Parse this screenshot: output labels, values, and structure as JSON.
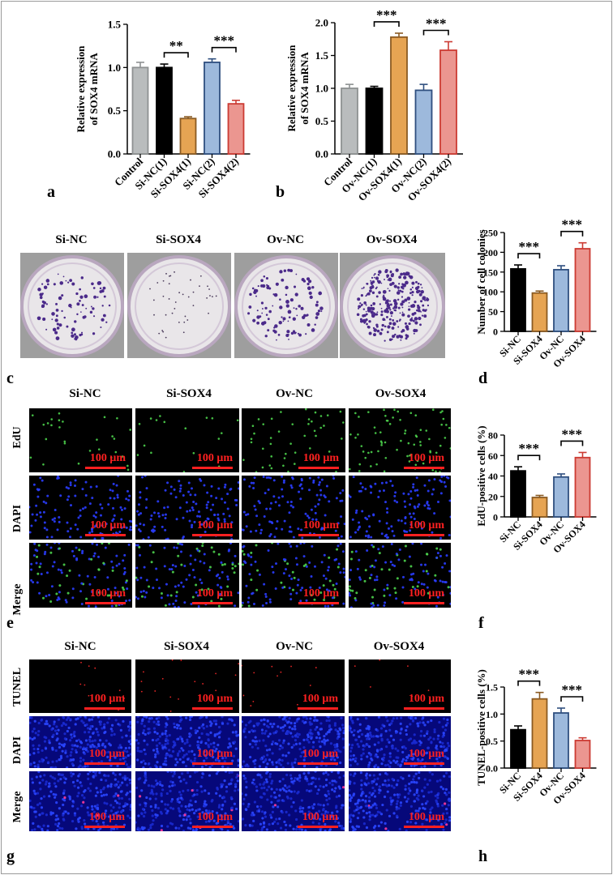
{
  "panel_letters": [
    "a",
    "b",
    "c",
    "d",
    "e",
    "f",
    "g",
    "h"
  ],
  "scale_text": "100 μm",
  "colony_group_labels": [
    "Si-NC",
    "Si-SOX4",
    "Ov-NC",
    "Ov-SOX4"
  ],
  "edu_group_labels": [
    "Si-NC",
    "Si-SOX4",
    "Ov-NC",
    "Ov-SOX4"
  ],
  "tunel_group_labels": [
    "Si-NC",
    "Si-SOX4",
    "Ov-NC",
    "Ov-SOX4"
  ],
  "edu_row_labels": [
    "EdU",
    "DAPI",
    "Merge"
  ],
  "tunel_row_labels": [
    "TUNEL",
    "DAPI",
    "Merge"
  ],
  "colors": {
    "gray": "#b9bcbd",
    "black": "#000000",
    "orange": "#e6a453",
    "blue": "#9db9dc",
    "pink": "#eb9690",
    "outline_orange": "#8a5a22",
    "outline_blue": "#2f4f7f",
    "outline_pink": "#cc3b33",
    "edu_green": "#4cd34c",
    "dapi_blue": "#2a3dff",
    "tunel_red": "#ff2a2a"
  },
  "chart_data": [
    {
      "id": "a",
      "type": "bar",
      "categories": [
        "Control",
        "Si-NC(1)",
        "Si-SOX4(1)",
        "Si-NC(2)",
        "Si-SOX4(2)"
      ],
      "values": [
        1.0,
        1.0,
        0.41,
        1.06,
        0.58
      ],
      "errors": [
        0.06,
        0.04,
        0.02,
        0.04,
        0.04
      ],
      "colors": [
        "gray",
        "black",
        "orange",
        "blue",
        "pink"
      ],
      "ylabel": [
        "Relative expression",
        "of SOX4 mRNA"
      ],
      "ylim": [
        0,
        1.5
      ],
      "yticks": [
        "0.0",
        "0.5",
        "1.0",
        "1.5"
      ],
      "brackets": [
        {
          "from": 1,
          "to": 2,
          "label": "**"
        },
        {
          "from": 3,
          "to": 4,
          "label": "***"
        }
      ]
    },
    {
      "id": "b",
      "type": "bar",
      "categories": [
        "Control",
        "Ov-NC(1)",
        "Ov-SOX4(1)",
        "Ov-NC(2)",
        "Ov-SOX4(2)"
      ],
      "values": [
        1.0,
        1.0,
        1.78,
        0.97,
        1.58
      ],
      "errors": [
        0.06,
        0.03,
        0.06,
        0.09,
        0.13
      ],
      "colors": [
        "gray",
        "black",
        "orange",
        "blue",
        "pink"
      ],
      "ylabel": [
        "Relative expression",
        "of SOX4 mRNA"
      ],
      "ylim": [
        0,
        2.0
      ],
      "yticks": [
        "0.0",
        "0.5",
        "1.0",
        "1.5",
        "2.0"
      ],
      "brackets": [
        {
          "from": 1,
          "to": 2,
          "label": "***"
        },
        {
          "from": 3,
          "to": 4,
          "label": "***"
        }
      ]
    },
    {
      "id": "d",
      "type": "bar",
      "categories": [
        "Si-NC",
        "Si-SOX4",
        "Ov-NC",
        "Ov-SOX4"
      ],
      "values": [
        158,
        97,
        156,
        209
      ],
      "errors": [
        10,
        5,
        10,
        15
      ],
      "colors": [
        "black",
        "orange",
        "blue",
        "pink"
      ],
      "ylabel": [
        "Number of cell colonies"
      ],
      "ylim": [
        0,
        250
      ],
      "yticks": [
        "0",
        "50",
        "100",
        "150",
        "200",
        "250"
      ],
      "brackets": [
        {
          "from": 0,
          "to": 1,
          "label": "***"
        },
        {
          "from": 2,
          "to": 3,
          "label": "***"
        }
      ]
    },
    {
      "id": "f",
      "type": "bar",
      "categories": [
        "Si-NC",
        "Si-SOX4",
        "Ov-NC",
        "Ov-SOX4"
      ],
      "values": [
        45,
        19,
        39,
        58
      ],
      "errors": [
        4,
        2,
        3,
        5
      ],
      "colors": [
        "black",
        "orange",
        "blue",
        "pink"
      ],
      "ylabel": [
        "EdU-positive cells (%)"
      ],
      "ylim": [
        0,
        80
      ],
      "yticks": [
        "0",
        "20",
        "40",
        "60",
        "80"
      ],
      "brackets": [
        {
          "from": 0,
          "to": 1,
          "label": "***"
        },
        {
          "from": 2,
          "to": 3,
          "label": "***"
        }
      ]
    },
    {
      "id": "h",
      "type": "bar",
      "categories": [
        "Si-NC",
        "Si-SOX4",
        "Ov-NC",
        "Ov-SOX4"
      ],
      "values": [
        0.71,
        1.28,
        1.02,
        0.51
      ],
      "errors": [
        0.07,
        0.12,
        0.09,
        0.05
      ],
      "colors": [
        "black",
        "orange",
        "blue",
        "pink"
      ],
      "ylabel": [
        "TUNEL-positive cells (%)"
      ],
      "ylim": [
        0,
        1.5
      ],
      "yticks": [
        "0.0",
        "0.5",
        "1.0",
        "1.5"
      ],
      "brackets": [
        {
          "from": 0,
          "to": 1,
          "label": "***"
        },
        {
          "from": 2,
          "to": 3,
          "label": "***"
        }
      ]
    }
  ]
}
